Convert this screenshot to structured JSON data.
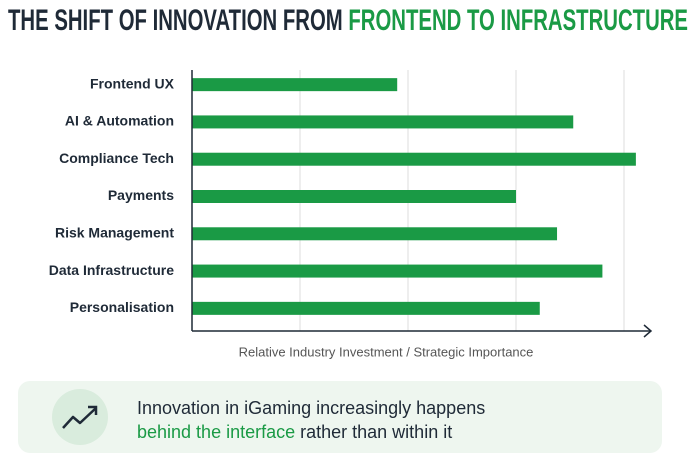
{
  "chart_data": {
    "type": "bar",
    "orientation": "horizontal",
    "title_parts": [
      "THE SHIFT OF INNOVATION FROM ",
      "FRONTEND TO INFRASTRUCTURE"
    ],
    "categories": [
      "Frontend UX",
      "AI & Automation",
      "Compliance Tech",
      "Payments",
      "Risk Management",
      "Data Infrastructure",
      "Personalisation"
    ],
    "values": [
      1.9,
      3.53,
      4.11,
      3.0,
      3.38,
      3.8,
      3.22
    ],
    "color": "#1a9a45",
    "xlim": [
      0,
      4.25
    ],
    "xticks": [
      1,
      2,
      3,
      4
    ],
    "grid": true,
    "x_label": "Relative Industry Investment / Strategic Importance"
  },
  "callout": {
    "line1": "Innovation in iGaming increasingly happens",
    "line2_highlight": "behind the interface",
    "line2_rest": " rather than within it"
  }
}
